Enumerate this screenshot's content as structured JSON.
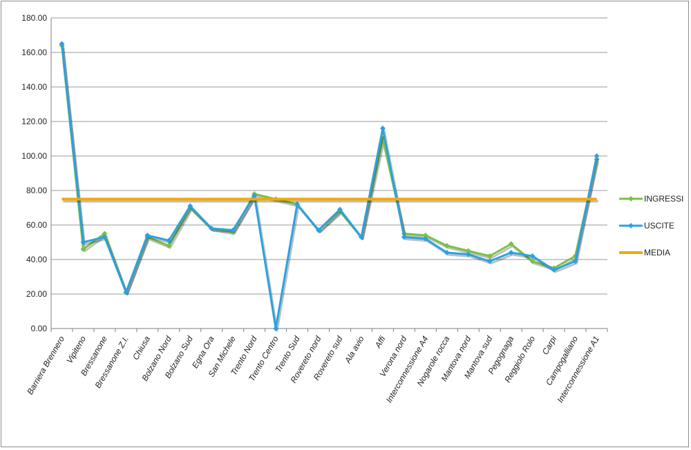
{
  "chart_data": {
    "type": "line",
    "title": "",
    "xlabel": "",
    "ylabel": "",
    "ylim": [
      0,
      180
    ],
    "ytick_step": 20,
    "ytick_format_decimals": 2,
    "grid": true,
    "legend_position": "right",
    "categories": [
      "Barriera Brennero",
      "Vipiteno",
      "Bressanone",
      "Bressanone Z.I.",
      "Chiusa",
      "Bolzano Nord",
      "Bolzano Sud",
      "Egna Ora",
      "San Michele",
      "Trento Nord",
      "Trento Centro",
      "Trento Sud",
      "Rovereto nord",
      "Rovereto sud",
      "Ala avio",
      "Affi",
      "Verona nord",
      "Interconnessione A4",
      "Nogarole rocca",
      "Mantova nord",
      "Mantova sud",
      "Pegognaga",
      "Reggiolo Rolo",
      "Carpi",
      "Campogalliano",
      "Interconnessione A1"
    ],
    "series": [
      {
        "name": "INGRESSI",
        "color": "#7ac143",
        "marker": "diamond",
        "values": [
          164,
          46,
          55,
          21,
          53,
          48,
          70,
          58,
          56,
          78,
          75,
          72,
          57,
          68,
          53,
          110,
          55,
          54,
          48,
          45,
          42,
          49,
          39,
          35,
          42,
          98
        ]
      },
      {
        "name": "USCITE",
        "color": "#29a3e3",
        "marker": "diamond",
        "values": [
          165,
          50,
          53,
          21,
          54,
          51,
          71,
          58,
          57,
          77,
          0,
          72,
          57,
          69,
          53,
          116,
          53,
          52,
          44,
          43,
          39,
          44,
          42,
          34,
          39,
          100
        ]
      },
      {
        "name": "MEDIA",
        "color": "#f5a800",
        "marker": "none",
        "values": [
          75,
          75,
          75,
          75,
          75,
          75,
          75,
          75,
          75,
          75,
          75,
          75,
          75,
          75,
          75,
          75,
          75,
          75,
          75,
          75,
          75,
          75,
          75,
          75,
          75,
          75
        ]
      }
    ]
  }
}
